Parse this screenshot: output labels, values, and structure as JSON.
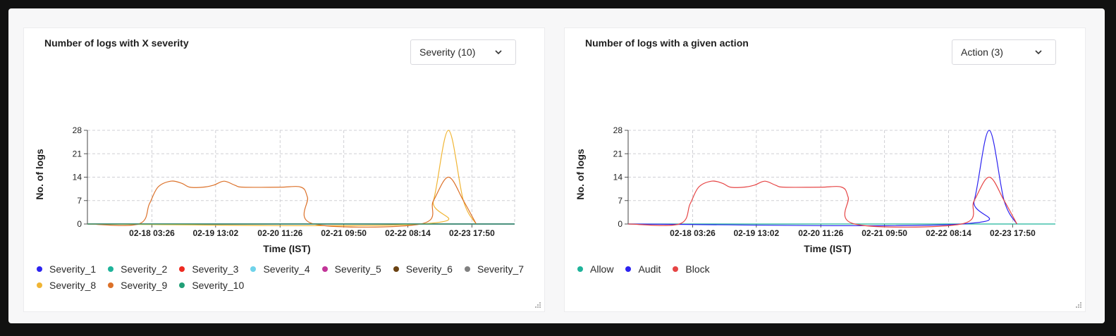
{
  "panels": [
    {
      "id": "left",
      "title": "Number of logs with X severity",
      "dropdown_label": "Severity (10)",
      "chart_data": {
        "type": "line",
        "title": "Number of logs with X severity",
        "xlabel": "Time (IST)",
        "ylabel": "No. of logs",
        "ylim": [
          0,
          28
        ],
        "yticks": [
          0,
          7,
          14,
          21,
          28
        ],
        "grid": true,
        "legend_position": "bottom",
        "x_index_range": [
          0,
          100
        ],
        "xtick_positions": [
          15.1,
          30.0,
          45.1,
          60.0,
          75.0,
          90.0
        ],
        "xticks": [
          "02-18 03:26",
          "02-19 13:02",
          "02-20 11:26",
          "02-21 09:50",
          "02-22 08:14",
          "02-23 17:50"
        ],
        "series": [
          {
            "name": "Severity_1",
            "color": "#2c23f0",
            "points": [
              [
                0,
                0
              ],
              [
                100,
                0
              ]
            ]
          },
          {
            "name": "Severity_2",
            "color": "#1fb39a",
            "points": [
              [
                0,
                0
              ],
              [
                100,
                0
              ]
            ]
          },
          {
            "name": "Severity_3",
            "color": "#ee2a20",
            "points": [
              [
                0,
                0
              ],
              [
                100,
                0
              ]
            ]
          },
          {
            "name": "Severity_4",
            "color": "#6fd3ea",
            "points": [
              [
                0,
                0
              ],
              [
                100,
                0
              ]
            ]
          },
          {
            "name": "Severity_5",
            "color": "#c23598",
            "points": [
              [
                0,
                0
              ],
              [
                100,
                0
              ]
            ]
          },
          {
            "name": "Severity_6",
            "color": "#6b4212",
            "points": [
              [
                0,
                0
              ],
              [
                100,
                0
              ]
            ]
          },
          {
            "name": "Severity_7",
            "color": "#808080",
            "points": [
              [
                0,
                0
              ],
              [
                100,
                0
              ]
            ]
          },
          {
            "name": "Severity_8",
            "color": "#f0b534",
            "points": [
              [
                0,
                0
              ],
              [
                78,
                0
              ],
              [
                81,
                7
              ],
              [
                84.5,
                28
              ],
              [
                88,
                7
              ],
              [
                91,
                0
              ]
            ]
          },
          {
            "name": "Severity_9",
            "color": "#dc7129",
            "points": [
              [
                0,
                0
              ],
              [
                12,
                0
              ],
              [
                14.5,
                6
              ],
              [
                16.5,
                11
              ],
              [
                19.5,
                12.8
              ],
              [
                22,
                12.2
              ],
              [
                24,
                11
              ],
              [
                27,
                11
              ],
              [
                29.5,
                11.6
              ],
              [
                32,
                12.8
              ],
              [
                34.5,
                11.6
              ],
              [
                36.5,
                11
              ],
              [
                45,
                11
              ],
              [
                50,
                11
              ],
              [
                51.5,
                8
              ],
              [
                53,
                0
              ],
              [
                78,
                0
              ],
              [
                81,
                7
              ],
              [
                84.5,
                14
              ],
              [
                88,
                7
              ],
              [
                91,
                0
              ]
            ]
          },
          {
            "name": "Severity_10",
            "color": "#219f77",
            "points": [
              [
                0,
                0
              ],
              [
                100,
                0
              ]
            ]
          }
        ]
      }
    },
    {
      "id": "right",
      "title": "Number of logs with a given action",
      "dropdown_label": "Action (3)",
      "chart_data": {
        "type": "line",
        "title": "Number of logs with a given action",
        "xlabel": "Time (IST)",
        "ylabel": "No. of logs",
        "ylim": [
          0,
          28
        ],
        "yticks": [
          0,
          7,
          14,
          21,
          28
        ],
        "grid": true,
        "legend_position": "bottom",
        "x_index_range": [
          0,
          100
        ],
        "xtick_positions": [
          15.1,
          30.0,
          45.1,
          60.0,
          75.0,
          90.0
        ],
        "xticks": [
          "02-18 03:26",
          "02-19 13:02",
          "02-20 11:26",
          "02-21 09:50",
          "02-22 08:14",
          "02-23 17:50"
        ],
        "series": [
          {
            "name": "Allow",
            "color": "#1fb39a",
            "points": [
              [
                0,
                0
              ],
              [
                100,
                0
              ]
            ]
          },
          {
            "name": "Audit",
            "color": "#2c23f0",
            "points": [
              [
                0,
                0
              ],
              [
                78,
                0
              ],
              [
                81,
                7
              ],
              [
                84.5,
                28
              ],
              [
                88,
                7
              ],
              [
                91,
                0
              ]
            ]
          },
          {
            "name": "Block",
            "color": "#e64545",
            "points": [
              [
                0,
                0
              ],
              [
                12,
                0
              ],
              [
                14.5,
                6
              ],
              [
                16.5,
                11
              ],
              [
                19.5,
                12.8
              ],
              [
                22,
                12.2
              ],
              [
                24,
                11
              ],
              [
                27,
                11
              ],
              [
                29.5,
                11.6
              ],
              [
                32,
                12.8
              ],
              [
                34.5,
                11.6
              ],
              [
                36.5,
                11
              ],
              [
                45,
                11
              ],
              [
                50,
                11
              ],
              [
                51.5,
                8
              ],
              [
                53,
                0
              ],
              [
                78,
                0
              ],
              [
                81,
                7
              ],
              [
                84.5,
                14
              ],
              [
                88,
                7
              ],
              [
                91,
                0
              ]
            ]
          }
        ]
      }
    }
  ]
}
